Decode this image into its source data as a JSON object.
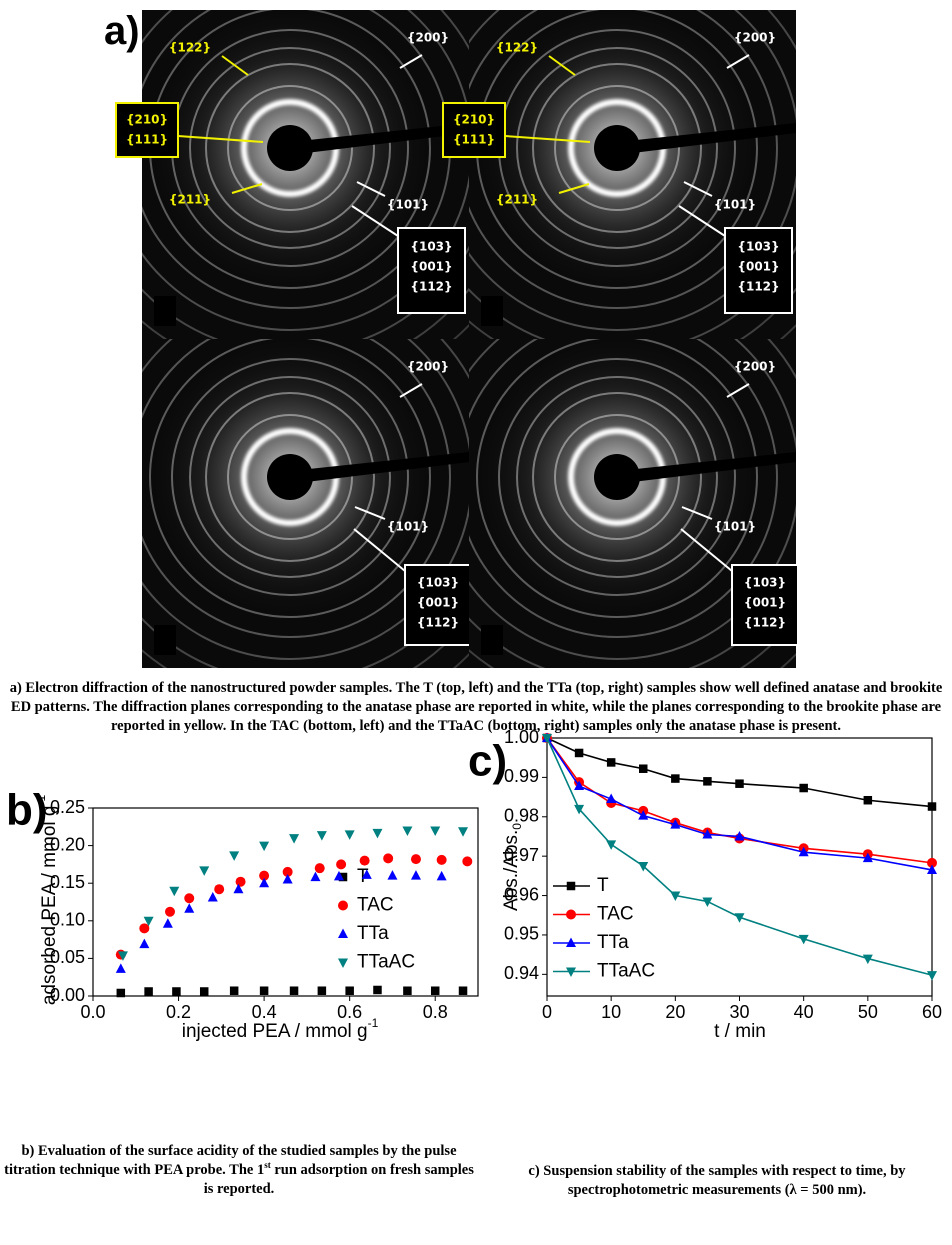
{
  "figure_a": {
    "panel_label": "a)",
    "quadrants": [
      {
        "labels": [
          {
            "lines": [
              "{122}"
            ],
            "color": "#f2f200"
          },
          {
            "lines": [
              "{210}",
              "{111}"
            ],
            "color": "#f2f200",
            "boxed": true
          },
          {
            "lines": [
              "{211}"
            ],
            "color": "#f2f200"
          },
          {
            "lines": [
              "{200}"
            ],
            "color": "#ffffff"
          },
          {
            "lines": [
              "{101}"
            ],
            "color": "#ffffff"
          },
          {
            "lines": [
              "{103}",
              "{001}",
              "{112}"
            ],
            "color": "#ffffff",
            "boxed": true
          }
        ]
      },
      {
        "labels": [
          {
            "lines": [
              "{122}"
            ],
            "color": "#f2f200"
          },
          {
            "lines": [
              "{210}",
              "{111}"
            ],
            "color": "#f2f200",
            "boxed": true
          },
          {
            "lines": [
              "{211}"
            ],
            "color": "#f2f200"
          },
          {
            "lines": [
              "{200}"
            ],
            "color": "#ffffff"
          },
          {
            "lines": [
              "{101}"
            ],
            "color": "#ffffff"
          },
          {
            "lines": [
              "{103}",
              "{001}",
              "{112}"
            ],
            "color": "#ffffff",
            "boxed": true
          }
        ]
      },
      {
        "labels": [
          {
            "lines": [
              "{200}"
            ],
            "color": "#ffffff"
          },
          {
            "lines": [
              "{101}"
            ],
            "color": "#ffffff"
          },
          {
            "lines": [
              "{103}",
              "{001}",
              "{112}"
            ],
            "color": "#ffffff",
            "boxed": true
          }
        ]
      },
      {
        "labels": [
          {
            "lines": [
              "{200}"
            ],
            "color": "#ffffff"
          },
          {
            "lines": [
              "{101}"
            ],
            "color": "#ffffff"
          },
          {
            "lines": [
              "{103}",
              "{001}",
              "{112}"
            ],
            "color": "#ffffff",
            "boxed": true
          }
        ]
      }
    ],
    "caption": "a) Electron diffraction of the nanostructured powder samples. The T (top, left) and the TTa (top, right) samples show well defined anatase and brookite ED patterns. The diffraction planes corresponding to the anatase phase are reported in white, while the planes corresponding to the brookite phase are reported in yellow. In the TAC (bottom, left) and the TTaAC (bottom, right) samples only the anatase phase is present."
  },
  "chart_data": [
    {
      "type": "scatter",
      "panel_label": "b)",
      "x_label": {
        "text": "injected PEA / mmol g",
        "sup": "-1"
      },
      "y_label": {
        "text": "adsorbed PEA / mmol g",
        "sup": "-1"
      },
      "xlim": [
        0,
        0.9
      ],
      "ylim": [
        0,
        0.25
      ],
      "xticks": [
        {
          "value": 0,
          "label": "0.0"
        },
        0.2,
        0.4,
        0.6,
        0.8
      ],
      "yticks": [
        {
          "value": 0,
          "label": "0.00"
        },
        0.05,
        {
          "value": 0.1,
          "label": "0.10"
        },
        0.15,
        {
          "value": 0.2,
          "label": "0.20"
        },
        0.25
      ],
      "legend": "right",
      "series": [
        {
          "name": "T",
          "color": "#000000",
          "marker": "square",
          "x": [
            0.065,
            0.13,
            0.195,
            0.26,
            0.33,
            0.4,
            0.47,
            0.535,
            0.6,
            0.665,
            0.735,
            0.8,
            0.865
          ],
          "values": [
            0.004,
            0.006,
            0.006,
            0.006,
            0.007,
            0.007,
            0.007,
            0.007,
            0.007,
            0.008,
            0.007,
            0.007,
            0.007
          ]
        },
        {
          "name": "TAC",
          "color": "#ff0000",
          "marker": "circle",
          "x": [
            0.065,
            0.12,
            0.18,
            0.225,
            0.295,
            0.345,
            0.4,
            0.455,
            0.53,
            0.58,
            0.635,
            0.69,
            0.755,
            0.815,
            0.875
          ],
          "values": [
            0.055,
            0.09,
            0.112,
            0.13,
            0.142,
            0.152,
            0.16,
            0.165,
            0.17,
            0.175,
            0.18,
            0.183,
            0.182,
            0.181,
            0.179
          ]
        },
        {
          "name": "TTa",
          "color": "#0000ff",
          "marker": "triangle-up",
          "x": [
            0.065,
            0.12,
            0.175,
            0.225,
            0.28,
            0.34,
            0.4,
            0.455,
            0.52,
            0.575,
            0.64,
            0.7,
            0.755,
            0.815
          ],
          "values": [
            0.036,
            0.069,
            0.096,
            0.116,
            0.131,
            0.142,
            0.15,
            0.155,
            0.158,
            0.159,
            0.161,
            0.16,
            0.16,
            0.159
          ]
        },
        {
          "name": "TTaAC",
          "color": "#008080",
          "marker": "triangle-down",
          "x": [
            0.07,
            0.13,
            0.19,
            0.26,
            0.33,
            0.4,
            0.47,
            0.535,
            0.6,
            0.665,
            0.735,
            0.8,
            0.865
          ],
          "values": [
            0.054,
            0.1,
            0.14,
            0.167,
            0.187,
            0.2,
            0.21,
            0.214,
            0.215,
            0.217,
            0.22,
            0.22,
            0.219
          ]
        }
      ],
      "caption": [
        "b) Evaluation of the surface acidity of the studied samples by the pulse titration technique with PEA probe. The 1",
        "st",
        " run adsorption on fresh samples is reported."
      ]
    },
    {
      "type": "line",
      "panel_label": "c)",
      "x_label": {
        "text": "t / min"
      },
      "y_label": {
        "text": "Abs./Abs.",
        "sub": "0"
      },
      "xlim": [
        0,
        60
      ],
      "ylim": [
        0.9345,
        1.0
      ],
      "xticks": [
        0,
        10,
        20,
        30,
        40,
        50,
        60
      ],
      "yticks": [
        0.94,
        0.95,
        0.96,
        0.97,
        0.98,
        0.99,
        {
          "value": 1.0,
          "label": "1.00"
        }
      ],
      "legend": "lower left",
      "x": [
        0,
        5,
        10,
        15,
        20,
        25,
        30,
        40,
        50,
        60
      ],
      "series": [
        {
          "name": "T",
          "color": "#000000",
          "marker": "square",
          "values": [
            1.0,
            0.9962,
            0.9938,
            0.9922,
            0.9897,
            0.989,
            0.9884,
            0.9873,
            0.9842,
            0.9826
          ]
        },
        {
          "name": "TAC",
          "color": "#ff0000",
          "marker": "circle",
          "values": [
            1.0,
            0.9888,
            0.9835,
            0.9815,
            0.9785,
            0.976,
            0.9745,
            0.972,
            0.9705,
            0.9683
          ]
        },
        {
          "name": "TTa",
          "color": "#0000ff",
          "marker": "triangle-up",
          "values": [
            1.0,
            0.9878,
            0.9845,
            0.9803,
            0.978,
            0.9755,
            0.975,
            0.971,
            0.9695,
            0.9665
          ]
        },
        {
          "name": "TTaAC",
          "color": "#008080",
          "marker": "triangle-down",
          "values": [
            1.0,
            0.982,
            0.973,
            0.9675,
            0.96,
            0.9585,
            0.9545,
            0.949,
            0.944,
            0.9398
          ]
        }
      ],
      "caption": [
        "c) Suspension stability of the samples with respect to time, by spectrophotometric measurements (λ = 500 nm)."
      ]
    }
  ]
}
